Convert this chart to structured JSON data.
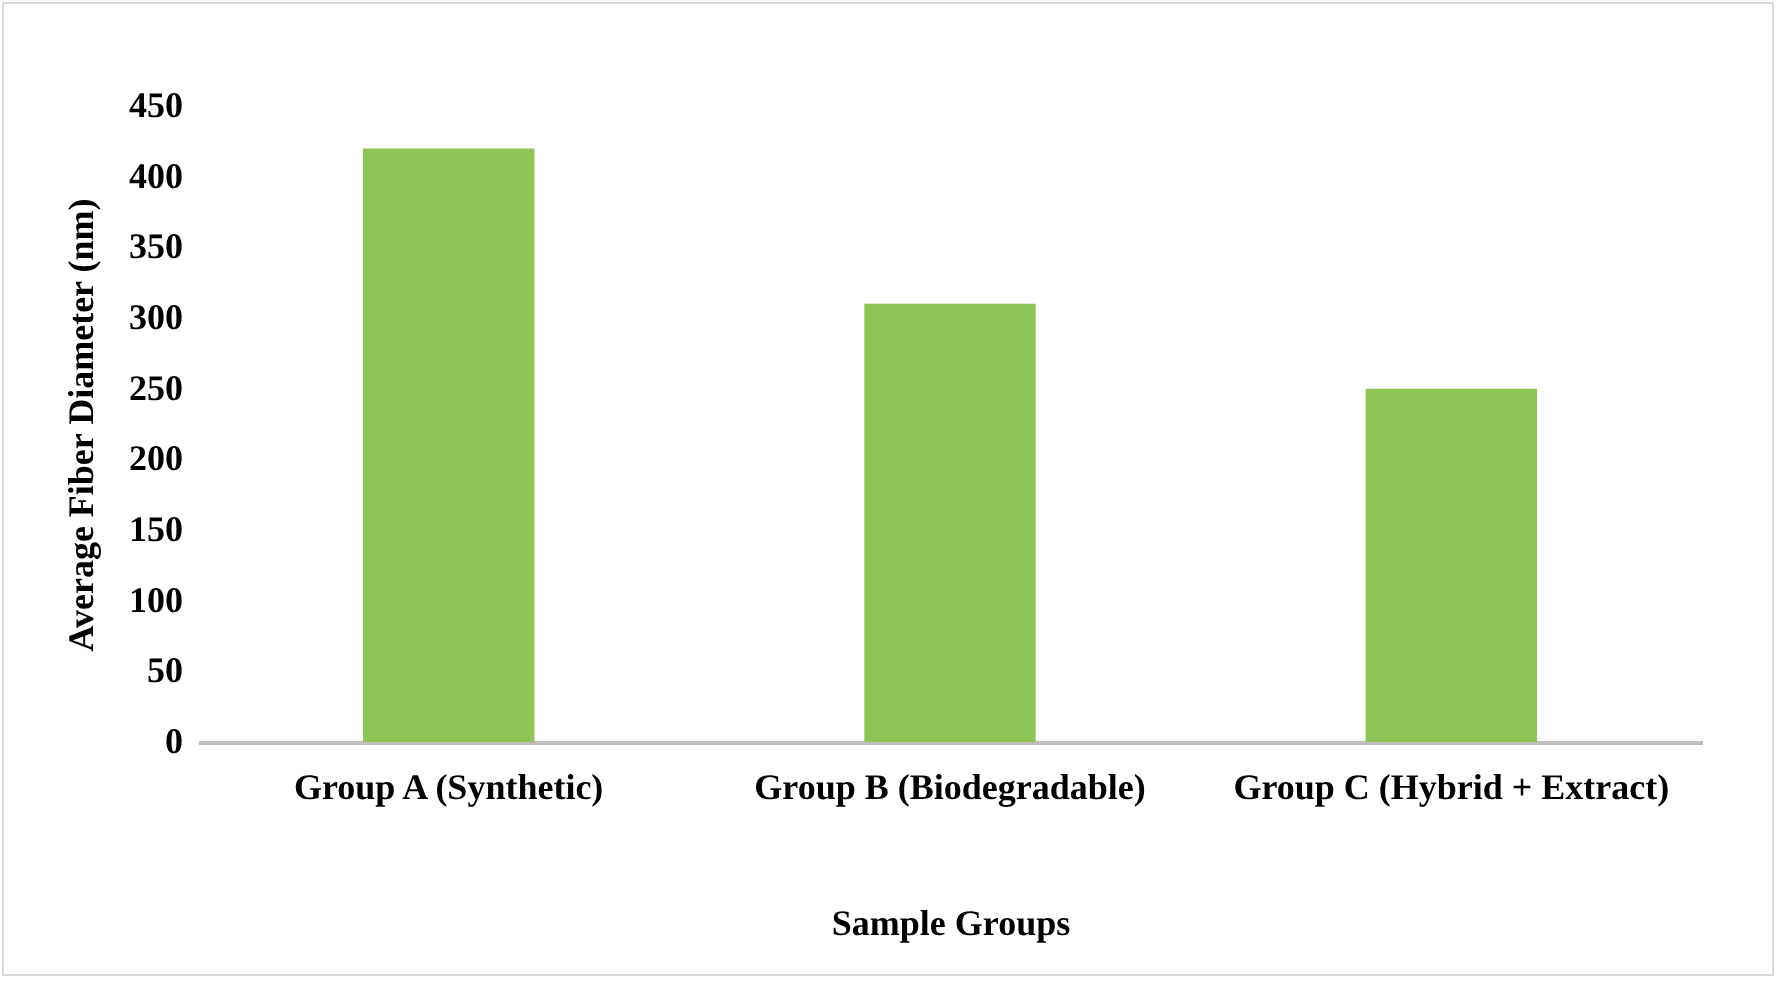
{
  "chart_data": {
    "type": "bar",
    "xlabel": "Sample Groups",
    "ylabel": "Average Fiber Diameter (nm)",
    "categories": [
      "Group A (Synthetic)",
      "Group B (Biodegradable)",
      "Group C (Hybrid + Extract)"
    ],
    "values": [
      420,
      310,
      250
    ],
    "color": "#8dc556",
    "ylim": [
      0,
      450
    ],
    "yticks": [
      0,
      50,
      100,
      150,
      200,
      250,
      300,
      350,
      400,
      450
    ],
    "grid": false
  }
}
